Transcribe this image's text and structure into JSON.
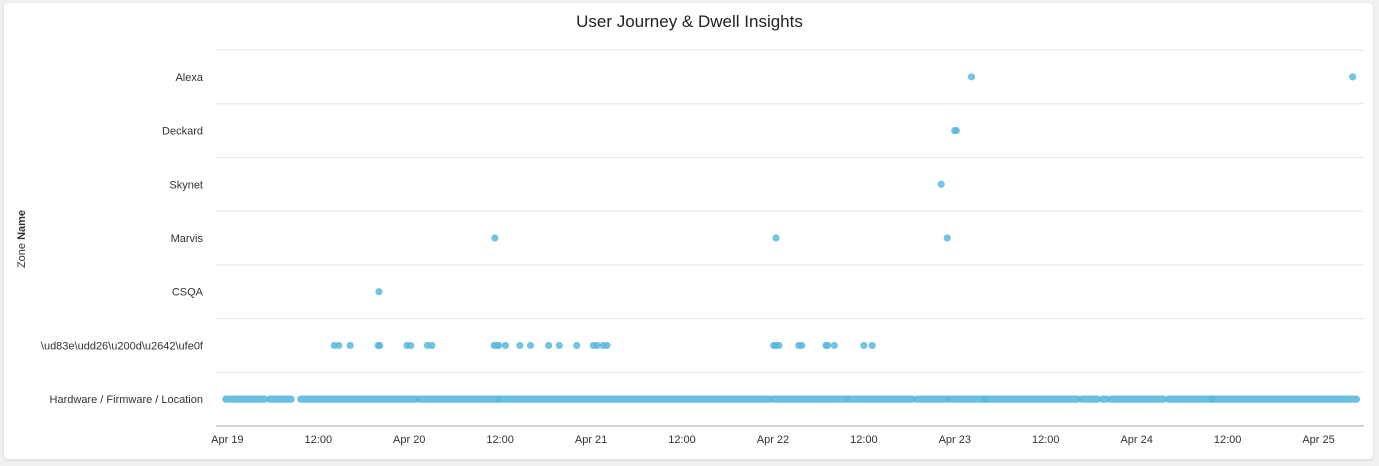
{
  "chart_data": {
    "type": "scatter",
    "title": "User Journey & Dwell Insights",
    "ylabel_prefix": "Zone",
    "ylabel_bold": "Name",
    "xlabel": "",
    "x_unit": "hours since Apr 19 00:00",
    "xlim": [
      -1.5,
      150
    ],
    "categories": [
      "Alexa",
      "Deckard",
      "Skynet",
      "Marvis",
      "CSQA",
      "\\ud83e\\udd26\\u200d\\u2642\\ufe0f",
      "Hardware / Firmware / Location"
    ],
    "x_ticks": [
      {
        "label": "Apr 19",
        "value": 0
      },
      {
        "label": "12:00",
        "value": 12
      },
      {
        "label": "Apr 20",
        "value": 24
      },
      {
        "label": "12:00",
        "value": 36
      },
      {
        "label": "Apr 21",
        "value": 48
      },
      {
        "label": "12:00",
        "value": 60
      },
      {
        "label": "Apr 22",
        "value": 72
      },
      {
        "label": "12:00",
        "value": 84
      },
      {
        "label": "Apr 23",
        "value": 96
      },
      {
        "label": "12:00",
        "value": 108
      },
      {
        "label": "Apr 24",
        "value": 120
      },
      {
        "label": "12:00",
        "value": 132
      },
      {
        "label": "Apr 25",
        "value": 144
      }
    ],
    "points": [
      {
        "category": "Alexa",
        "x": [
          98.2,
          148.5
        ]
      },
      {
        "category": "Deckard",
        "x": [
          96.0,
          96.2
        ]
      },
      {
        "category": "Skynet",
        "x": [
          94.2
        ]
      },
      {
        "category": "Marvis",
        "x": [
          35.3,
          72.4,
          95.0
        ]
      },
      {
        "category": "CSQA",
        "x": [
          20.0
        ]
      },
      {
        "category": "\\ud83e\\udd26\\u200d\\u2642\\ufe0f",
        "x": [
          14.1,
          14.7,
          16.2,
          19.9,
          20.1,
          23.7,
          24.2,
          26.4,
          27.0,
          35.2,
          35.6,
          35.8,
          36.7,
          38.6,
          40.0,
          42.4,
          43.8,
          46.1,
          48.3,
          48.8,
          49.6,
          50.1,
          72.1,
          72.4,
          72.8,
          75.4,
          75.8,
          79.0,
          79.2,
          80.1,
          84.0,
          85.1
        ]
      },
      {
        "category": "Hardware / Firmware / Location",
        "x_ranges": [
          [
            -0.2,
            4.9
          ],
          [
            5.6,
            8.4
          ],
          [
            9.7,
            24.8
          ],
          [
            25.2,
            35.7
          ],
          [
            35.9,
            71.5
          ],
          [
            72.0,
            81.7
          ],
          [
            82.0,
            90.4
          ],
          [
            91.0,
            95.0
          ],
          [
            95.3,
            100.0
          ],
          [
            100.0,
            112.2
          ],
          [
            112.8,
            114.8
          ],
          [
            115.5,
            116.0
          ],
          [
            116.6,
            123.5
          ],
          [
            124.2,
            130.0
          ],
          [
            130.0,
            149.0
          ]
        ]
      }
    ]
  }
}
